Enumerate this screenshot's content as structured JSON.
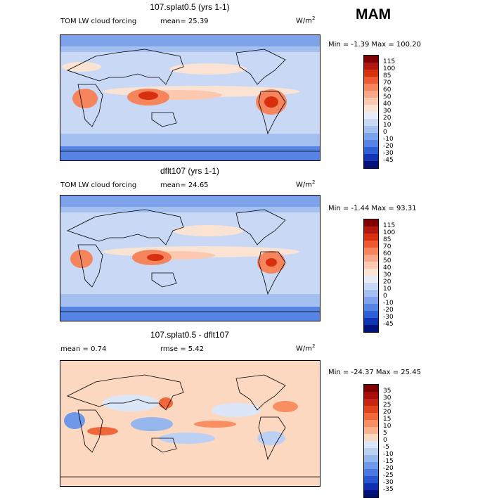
{
  "season": "MAM",
  "panels": [
    {
      "title": "107.splat0.5 (yrs 1-1)",
      "left_label": "TOM LW cloud forcing",
      "stat_text": "mean=  25.39",
      "units_base": "W/m",
      "units_exp": "2",
      "minmax_text": "Min =  -1.39 Max = 100.20",
      "colorbar": {
        "labels": [
          "115",
          "100",
          "85",
          "70",
          "60",
          "50",
          "40",
          "30",
          "20",
          "10",
          "0",
          "-10",
          "-20",
          "-30",
          "-45"
        ],
        "colors": [
          "#7f0000",
          "#b2180e",
          "#d8300e",
          "#ef5a32",
          "#f6845c",
          "#faa787",
          "#fcc9b0",
          "#fbe3d3",
          "#e8ecf6",
          "#c8d8f5",
          "#a4c0f0",
          "#7da4ea",
          "#5684e4",
          "#2c5fd8",
          "#1035b4",
          "#00127a"
        ]
      }
    },
    {
      "title": "dflt107 (yrs 1-1)",
      "left_label": "TOM LW cloud forcing",
      "stat_text": "mean=  24.65",
      "units_base": "W/m",
      "units_exp": "2",
      "minmax_text": "Min =  -1.44 Max =  93.31",
      "colorbar": {
        "labels": [
          "115",
          "100",
          "85",
          "70",
          "60",
          "50",
          "40",
          "30",
          "20",
          "10",
          "0",
          "-10",
          "-20",
          "-30",
          "-45"
        ],
        "colors": [
          "#7f0000",
          "#b2180e",
          "#d8300e",
          "#ef5a32",
          "#f6845c",
          "#faa787",
          "#fcc9b0",
          "#fbe3d3",
          "#e8ecf6",
          "#c8d8f5",
          "#a4c0f0",
          "#7da4ea",
          "#5684e4",
          "#2c5fd8",
          "#1035b4",
          "#00127a"
        ]
      }
    },
    {
      "title": "107.splat0.5 - dflt107",
      "left_label": "mean =   0.74",
      "stat_text": "rmse =   5.42",
      "units_base": "W/m",
      "units_exp": "2",
      "minmax_text": "Min = -24.37 Max =  25.45",
      "colorbar": {
        "labels": [
          "35",
          "30",
          "25",
          "20",
          "15",
          "10",
          "5",
          "0",
          "-5",
          "-10",
          "-15",
          "-20",
          "-25",
          "-30",
          "-35"
        ],
        "colors": [
          "#7f0000",
          "#a5100a",
          "#c82414",
          "#e0421e",
          "#f0673a",
          "#f88e62",
          "#fbb38f",
          "#fdd8c0",
          "#dbe6f8",
          "#bcd0f4",
          "#96b6ee",
          "#6f98e8",
          "#4878e0",
          "#2654d2",
          "#0e30b0",
          "#00127a"
        ]
      }
    }
  ],
  "chart_data": {
    "type": "heatmap",
    "variable": "TOM LW cloud forcing",
    "season": "MAM",
    "panels": [
      {
        "name": "107.splat0.5 (yrs 1-1)",
        "mean": 25.39,
        "min": -1.39,
        "max": 100.2,
        "units": "W/m2",
        "levels": [
          -45,
          -30,
          -20,
          -10,
          0,
          10,
          20,
          30,
          40,
          50,
          60,
          70,
          85,
          100,
          115
        ]
      },
      {
        "name": "dflt107 (yrs 1-1)",
        "mean": 24.65,
        "min": -1.44,
        "max": 93.31,
        "units": "W/m2",
        "levels": [
          -45,
          -30,
          -20,
          -10,
          0,
          10,
          20,
          30,
          40,
          50,
          60,
          70,
          85,
          100,
          115
        ]
      },
      {
        "name": "107.splat0.5 - dflt107",
        "mean": 0.74,
        "rmse": 5.42,
        "min": -24.37,
        "max": 25.45,
        "units": "W/m2",
        "levels": [
          -35,
          -30,
          -25,
          -20,
          -15,
          -10,
          -5,
          0,
          5,
          10,
          15,
          20,
          25,
          30,
          35
        ]
      }
    ]
  }
}
